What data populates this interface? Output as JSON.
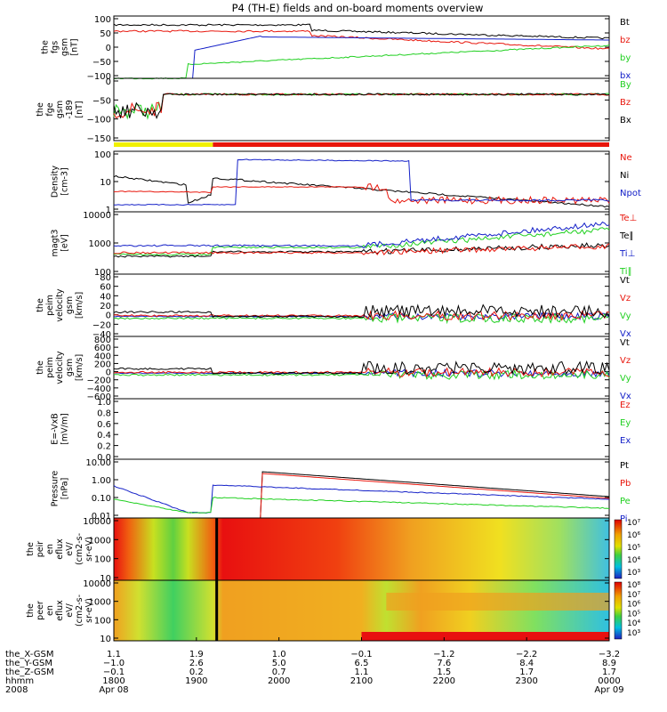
{
  "title": "P4 (TH-E) fields and on-board moments overview",
  "colors": {
    "black": "#000000",
    "red": "#e8160c",
    "green": "#20d020",
    "blue": "#1420c8",
    "yellow": "#f0f000"
  },
  "chart_data": [
    {
      "type": "line",
      "panel": "fgs",
      "ylabel": [
        "the",
        "fgs",
        "gsm",
        "[nT]"
      ],
      "ylim": [
        -100,
        100
      ],
      "yticks": [
        "100",
        "50",
        "0",
        "−50",
        "−100"
      ],
      "legend": [
        {
          "label": "Bt",
          "color": "black"
        },
        {
          "label": "bz",
          "color": "red"
        },
        {
          "label": "by",
          "color": "green"
        },
        {
          "label": "bx",
          "color": "blue"
        }
      ]
    },
    {
      "type": "line",
      "panel": "fge",
      "ylabel": [
        "the",
        "fge",
        "gsm",
        "-189",
        "[nT]"
      ],
      "ylim": [
        -175,
        15
      ],
      "yticks": [
        "0",
        "−50",
        "−100",
        "−150"
      ],
      "legend": [
        {
          "label": "By",
          "color": "green"
        },
        {
          "label": "Bz",
          "color": "red"
        },
        {
          "label": "Bx",
          "color": "black"
        }
      ]
    },
    {
      "type": "line",
      "panel": "density",
      "ylabel": [
        "Density",
        "[cm-3]"
      ],
      "scale": "log",
      "yticks": [
        "100",
        "10",
        "1"
      ],
      "legend": [
        {
          "label": "Ne",
          "color": "red"
        },
        {
          "label": "Ni",
          "color": "black"
        },
        {
          "label": "Npot",
          "color": "blue"
        }
      ]
    },
    {
      "type": "line",
      "panel": "temperature",
      "ylabel": [
        "magt3",
        "[eV]"
      ],
      "scale": "log",
      "yticks": [
        "10000",
        "1000",
        "100"
      ],
      "legend": [
        {
          "label": "Te⊥",
          "color": "red"
        },
        {
          "label": "Te∥",
          "color": "black"
        },
        {
          "label": "Ti⊥",
          "color": "blue"
        },
        {
          "label": "Ti∥",
          "color": "green"
        }
      ]
    },
    {
      "type": "line",
      "panel": "velocity-e",
      "ylabel": [
        "the",
        "peim",
        "velocity",
        "gsm",
        "[km/s]"
      ],
      "ylim": [
        -40,
        80
      ],
      "yticks": [
        "80",
        "60",
        "40",
        "20",
        "0",
        "−20",
        "−40"
      ],
      "legend": [
        {
          "label": "Vt",
          "color": "black"
        },
        {
          "label": "Vz",
          "color": "red"
        },
        {
          "label": "Vy",
          "color": "green"
        },
        {
          "label": "Vx",
          "color": "blue"
        }
      ]
    },
    {
      "type": "line",
      "panel": "velocity-i",
      "ylabel": [
        "the",
        "peim",
        "velocity",
        "gsm",
        "[km/s]"
      ],
      "ylim": [
        -600,
        800
      ],
      "yticks": [
        "800",
        "600",
        "400",
        "200",
        "0",
        "−200",
        "−400",
        "−600"
      ],
      "legend": [
        {
          "label": "Vt",
          "color": "black"
        },
        {
          "label": "Vz",
          "color": "red"
        },
        {
          "label": "Vy",
          "color": "green"
        },
        {
          "label": "Vx",
          "color": "blue"
        }
      ]
    },
    {
      "type": "line",
      "panel": "efield",
      "ylabel": [
        "E=-VxB",
        "[mV/m]"
      ],
      "ylim": [
        0,
        1
      ],
      "yticks": [
        "1.0",
        "0.8",
        "0.6",
        "0.4",
        "0.2",
        "0.0"
      ],
      "legend": [
        {
          "label": "Ez",
          "color": "red"
        },
        {
          "label": "Ey",
          "color": "green"
        },
        {
          "label": "Ex",
          "color": "blue"
        }
      ]
    },
    {
      "type": "line",
      "panel": "pressure",
      "ylabel": [
        "Pressure",
        "[nPa]"
      ],
      "scale": "log",
      "yticks": [
        "10.00",
        "1.00",
        "0.10",
        "0.01"
      ],
      "legend": [
        {
          "label": "Pt",
          "color": "black"
        },
        {
          "label": "Pb",
          "color": "red"
        },
        {
          "label": "Pe",
          "color": "green"
        },
        {
          "label": "Pi",
          "color": "blue"
        }
      ]
    },
    {
      "type": "heatmap",
      "panel": "ion-spectrogram",
      "ylabel": [
        "the",
        "peir",
        "en",
        "eflux",
        "eV/",
        "(cm2-s-",
        "sr-eV)"
      ],
      "scale": "log",
      "yticks": [
        "10000",
        "1000",
        "100",
        "10"
      ],
      "colorbar": [
        "10⁷",
        "10⁶",
        "10⁵",
        "10⁴",
        "10³"
      ]
    },
    {
      "type": "heatmap",
      "panel": "electron-spectrogram",
      "ylabel": [
        "the",
        "peer",
        "en",
        "eflux",
        "eV/",
        "(cm2-s-",
        "sr-eV)"
      ],
      "scale": "log",
      "yticks": [
        "10000",
        "1000",
        "100",
        "10"
      ],
      "colorbar": [
        "10⁸",
        "10⁷",
        "10⁶",
        "10⁵",
        "10⁴",
        "10³"
      ]
    }
  ],
  "xaxis": {
    "row_labels": [
      "the_X-GSM",
      "the_Y-GSM",
      "the_Z-GSM",
      "hhmm",
      "2008"
    ],
    "columns": [
      {
        "x": "1.1",
        "y": "−1.0",
        "z": "−0.1",
        "time": "1800",
        "date": "Apr 08"
      },
      {
        "x": "1.9",
        "y": "2.6",
        "z": "0.2",
        "time": "1900",
        "date": ""
      },
      {
        "x": "1.0",
        "y": "5.0",
        "z": "0.7",
        "time": "2000",
        "date": ""
      },
      {
        "x": "−0.1",
        "y": "6.5",
        "z": "1.1",
        "time": "2100",
        "date": ""
      },
      {
        "x": "−1.2",
        "y": "7.6",
        "z": "1.5",
        "time": "2200",
        "date": ""
      },
      {
        "x": "−2.2",
        "y": "8.4",
        "z": "1.7",
        "time": "2300",
        "date": ""
      },
      {
        "x": "−3.2",
        "y": "8.9",
        "z": "1.7",
        "time": "0000",
        "date": "Apr 09"
      }
    ]
  }
}
